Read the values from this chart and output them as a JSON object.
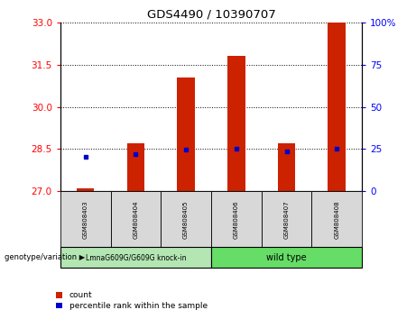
{
  "title": "GDS4490 / 10390707",
  "samples": [
    "GSM808403",
    "GSM808404",
    "GSM808405",
    "GSM808406",
    "GSM808407",
    "GSM808408"
  ],
  "bar_bottoms": [
    27,
    27,
    27,
    27,
    27,
    27
  ],
  "bar_tops": [
    27.12,
    28.72,
    31.05,
    31.82,
    28.72,
    33.0
  ],
  "percentile_values": [
    28.22,
    28.32,
    28.48,
    28.5,
    28.42,
    28.5
  ],
  "ylim_left": [
    27,
    33
  ],
  "ylim_right": [
    0,
    100
  ],
  "yticks_left": [
    27,
    28.5,
    30,
    31.5,
    33
  ],
  "yticks_right": [
    0,
    25,
    50,
    75,
    100
  ],
  "bar_color": "#cc2200",
  "dot_color": "#0000cc",
  "group1_label": "LmnaG609G/G609G knock-in",
  "group2_label": "wild type",
  "group1_color": "#b3e6b3",
  "group2_color": "#66dd66",
  "genotype_label": "genotype/variation",
  "legend_count_label": "count",
  "legend_pct_label": "percentile rank within the sample",
  "bar_width": 0.35,
  "sample_box_color": "#d8d8d8",
  "plot_bg_color": "#ffffff"
}
